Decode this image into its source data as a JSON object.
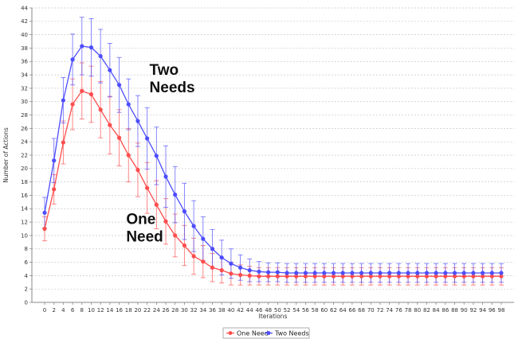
{
  "chart_data": {
    "type": "line",
    "xlabel": "Iterations",
    "ylabel": "Number of Actions",
    "xlim": [
      0,
      98
    ],
    "ylim": [
      0,
      44
    ],
    "xticks": [
      0,
      2,
      4,
      6,
      8,
      10,
      12,
      14,
      16,
      18,
      20,
      22,
      24,
      26,
      28,
      30,
      32,
      34,
      36,
      38,
      40,
      42,
      44,
      46,
      48,
      50,
      52,
      54,
      56,
      58,
      60,
      62,
      64,
      66,
      68,
      70,
      72,
      74,
      76,
      78,
      80,
      82,
      84,
      86,
      88,
      90,
      92,
      94,
      96,
      98
    ],
    "yticks": [
      0,
      2,
      4,
      6,
      8,
      10,
      12,
      14,
      16,
      18,
      20,
      22,
      24,
      26,
      28,
      30,
      32,
      34,
      36,
      38,
      40,
      42,
      44
    ],
    "grid": true,
    "legend_position": "bottom-center",
    "x": [
      0,
      2,
      4,
      6,
      8,
      10,
      12,
      14,
      16,
      18,
      20,
      22,
      24,
      26,
      28,
      30,
      32,
      34,
      36,
      38,
      40,
      42,
      44,
      46,
      48,
      50,
      52,
      54,
      56,
      58,
      60,
      62,
      64,
      66,
      68,
      70,
      72,
      74,
      76,
      78,
      80,
      82,
      84,
      86,
      88,
      90,
      92,
      94,
      96,
      98
    ],
    "series": [
      {
        "name": "One Need",
        "color": "#ff4d4d",
        "values": [
          11.0,
          16.9,
          23.9,
          29.6,
          31.6,
          31.1,
          28.8,
          26.5,
          24.6,
          22.0,
          19.8,
          17.1,
          14.6,
          12.1,
          10.0,
          8.5,
          6.9,
          6.1,
          5.2,
          4.8,
          4.3,
          4.1,
          4.0,
          3.9,
          3.9,
          3.9,
          3.9,
          3.9,
          3.9,
          3.9,
          3.9,
          3.9,
          3.9,
          3.9,
          3.9,
          3.9,
          3.9,
          3.9,
          3.9,
          3.9,
          3.9,
          3.9,
          3.9,
          3.9,
          3.9,
          3.9,
          3.9,
          3.9,
          3.9,
          3.9
        ],
        "errors": [
          1.8,
          2.2,
          3.2,
          3.8,
          4.2,
          4.2,
          4.2,
          4.3,
          4.2,
          4.0,
          4.0,
          3.8,
          3.6,
          3.4,
          3.2,
          3.0,
          2.7,
          2.4,
          2.1,
          1.9,
          1.7,
          1.5,
          1.4,
          1.3,
          1.3,
          1.3,
          1.3,
          1.3,
          1.3,
          1.3,
          1.3,
          1.3,
          1.3,
          1.3,
          1.3,
          1.3,
          1.3,
          1.3,
          1.3,
          1.3,
          1.3,
          1.3,
          1.3,
          1.3,
          1.3,
          1.3,
          1.3,
          1.3,
          1.3,
          1.3
        ]
      },
      {
        "name": "Two Needs",
        "color": "#4d4dff",
        "values": [
          13.4,
          21.2,
          30.2,
          36.3,
          38.3,
          38.1,
          36.8,
          34.7,
          32.5,
          29.6,
          27.1,
          24.5,
          21.9,
          18.8,
          16.1,
          13.6,
          11.4,
          9.5,
          8.0,
          6.7,
          5.8,
          5.2,
          4.8,
          4.6,
          4.5,
          4.5,
          4.4,
          4.4,
          4.4,
          4.4,
          4.4,
          4.4,
          4.4,
          4.4,
          4.4,
          4.4,
          4.4,
          4.4,
          4.4,
          4.4,
          4.4,
          4.4,
          4.4,
          4.4,
          4.4,
          4.4,
          4.4,
          4.4,
          4.4,
          4.4
        ],
        "errors": [
          2.3,
          3.3,
          3.4,
          3.8,
          4.3,
          4.3,
          4.0,
          4.0,
          4.1,
          3.8,
          3.8,
          4.6,
          4.3,
          4.6,
          4.2,
          4.2,
          3.8,
          3.3,
          2.9,
          2.6,
          2.2,
          1.9,
          1.7,
          1.5,
          1.4,
          1.4,
          1.4,
          1.4,
          1.4,
          1.4,
          1.4,
          1.4,
          1.4,
          1.4,
          1.4,
          1.4,
          1.4,
          1.4,
          1.4,
          1.4,
          1.4,
          1.4,
          1.4,
          1.4,
          1.4,
          1.4,
          1.4,
          1.4,
          1.4,
          1.4
        ]
      }
    ],
    "annotations": [
      {
        "text_lines": [
          "Two",
          "Needs"
        ],
        "x": 22.5,
        "y": 34.0
      },
      {
        "text_lines": [
          "One",
          "Need"
        ],
        "x": 17.5,
        "y": 11.7
      }
    ]
  }
}
